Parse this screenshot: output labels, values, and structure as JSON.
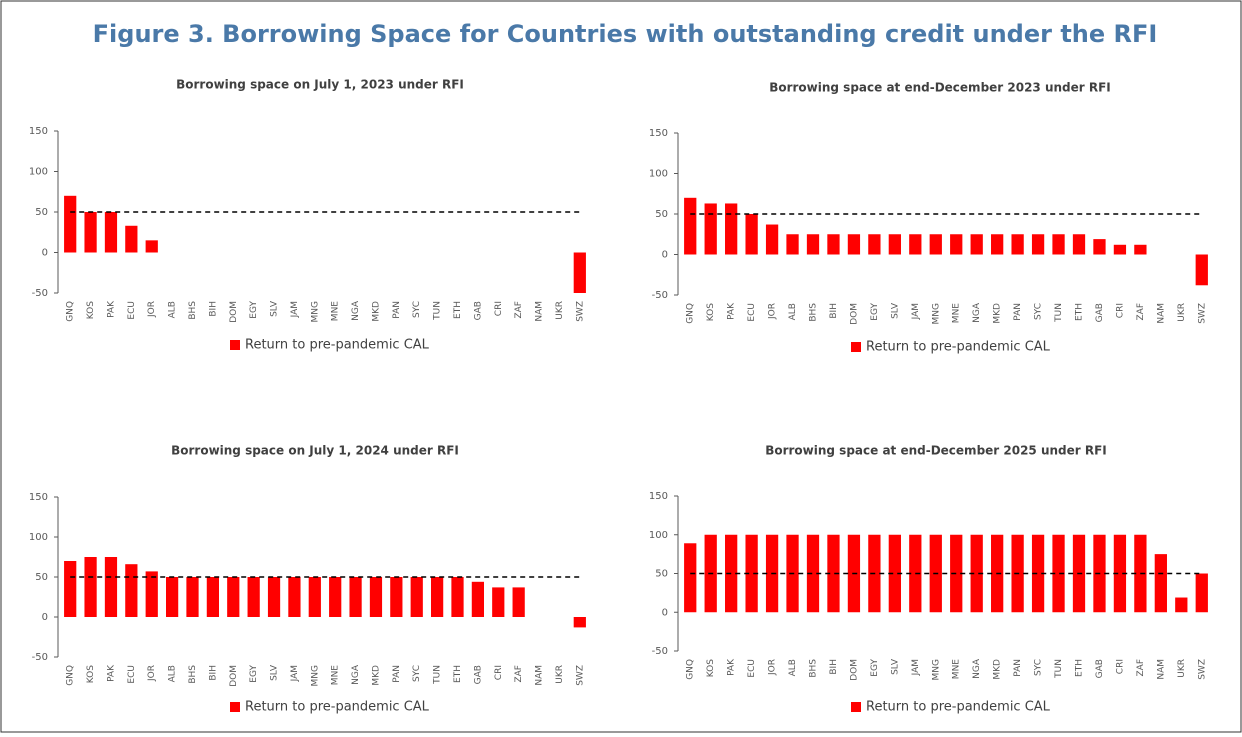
{
  "title": "Figure 3. Borrowing Space for Countries with outstanding credit under the RFI",
  "chart_data": [
    {
      "type": "bar",
      "title": "Borrowing space on July 1, 2023 under RFI",
      "categories": [
        "GNQ",
        "KOS",
        "PAK",
        "ECU",
        "JOR",
        "ALB",
        "BHS",
        "BIH",
        "DOM",
        "EGY",
        "SLV",
        "JAM",
        "MNG",
        "MNE",
        "NGA",
        "MKD",
        "PAN",
        "SYC",
        "TUN",
        "ETH",
        "GAB",
        "CRI",
        "ZAF",
        "NAM",
        "UKR",
        "SWZ"
      ],
      "series": [
        {
          "name": "Return to pre-pandemic CAL",
          "color": "#ff0000",
          "values": [
            70,
            50,
            50,
            33,
            15,
            0,
            0,
            0,
            0,
            0,
            0,
            0,
            0,
            0,
            0,
            0,
            0,
            0,
            0,
            0,
            0,
            0,
            0,
            0,
            0,
            -50
          ]
        }
      ],
      "reference_line": 50,
      "ylim": [
        -50,
        150
      ],
      "yticks": [
        -50,
        0,
        50,
        100,
        150
      ],
      "legend": "bottom"
    },
    {
      "type": "bar",
      "title": "Borrowing space at end-December 2023 under RFI",
      "categories": [
        "GNQ",
        "KOS",
        "PAK",
        "ECU",
        "JOR",
        "ALB",
        "BHS",
        "BIH",
        "DOM",
        "EGY",
        "SLV",
        "JAM",
        "MNG",
        "MNE",
        "NGA",
        "MKD",
        "PAN",
        "SYC",
        "TUN",
        "ETH",
        "GAB",
        "CRI",
        "ZAF",
        "NAM",
        "UKR",
        "SWZ"
      ],
      "series": [
        {
          "name": "Return to pre-pandemic CAL",
          "color": "#ff0000",
          "values": [
            70,
            63,
            63,
            50,
            37,
            25,
            25,
            25,
            25,
            25,
            25,
            25,
            25,
            25,
            25,
            25,
            25,
            25,
            25,
            25,
            19,
            12,
            12,
            0,
            0,
            -38
          ]
        }
      ],
      "reference_line": 50,
      "ylim": [
        -50,
        150
      ],
      "yticks": [
        -50,
        0,
        50,
        100,
        150
      ],
      "legend": "bottom"
    },
    {
      "type": "bar",
      "title": "Borrowing space on July 1, 2024 under RFI",
      "categories": [
        "GNQ",
        "KOS",
        "PAK",
        "ECU",
        "JOR",
        "ALB",
        "BHS",
        "BIH",
        "DOM",
        "EGY",
        "SLV",
        "JAM",
        "MNG",
        "MNE",
        "NGA",
        "MKD",
        "PAN",
        "SYC",
        "TUN",
        "ETH",
        "GAB",
        "CRI",
        "ZAF",
        "NAM",
        "UKR",
        "SWZ"
      ],
      "series": [
        {
          "name": "Return to pre-pandemic CAL",
          "color": "#ff0000",
          "values": [
            70,
            75,
            75,
            66,
            57,
            50,
            50,
            50,
            50,
            50,
            50,
            50,
            50,
            50,
            50,
            50,
            50,
            50,
            50,
            50,
            44,
            37,
            37,
            0,
            0,
            -13
          ]
        }
      ],
      "reference_line": 50,
      "ylim": [
        -50,
        150
      ],
      "yticks": [
        -50,
        0,
        50,
        100,
        150
      ],
      "legend": "bottom"
    },
    {
      "type": "bar",
      "title": "Borrowing space at end-December 2025 under RFI",
      "categories": [
        "GNQ",
        "KOS",
        "PAK",
        "ECU",
        "JOR",
        "ALB",
        "BHS",
        "BIH",
        "DOM",
        "EGY",
        "SLV",
        "JAM",
        "MNG",
        "MNE",
        "NGA",
        "MKD",
        "PAN",
        "SYC",
        "TUN",
        "ETH",
        "GAB",
        "CRI",
        "ZAF",
        "NAM",
        "UKR",
        "SWZ"
      ],
      "series": [
        {
          "name": "Return to pre-pandemic CAL",
          "color": "#ff0000",
          "values": [
            89,
            100,
            100,
            100,
            100,
            100,
            100,
            100,
            100,
            100,
            100,
            100,
            100,
            100,
            100,
            100,
            100,
            100,
            100,
            100,
            100,
            100,
            100,
            75,
            19,
            50
          ]
        }
      ],
      "reference_line": 50,
      "ylim": [
        -50,
        150
      ],
      "yticks": [
        -50,
        0,
        50,
        100,
        150
      ],
      "legend": "bottom"
    }
  ]
}
